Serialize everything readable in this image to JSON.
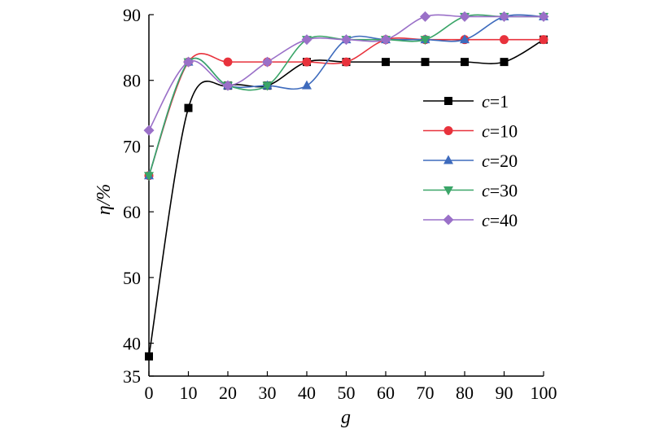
{
  "chart_data": {
    "type": "line",
    "xlabel": "g",
    "ylabel": "η/%",
    "xlim": [
      0,
      100
    ],
    "ylim": [
      35,
      90
    ],
    "xticks": [
      0,
      10,
      20,
      30,
      40,
      50,
      60,
      70,
      80,
      90,
      100
    ],
    "yticks": [
      35,
      40,
      50,
      60,
      70,
      80,
      90
    ],
    "legend_position": "right",
    "x": [
      0,
      10,
      20,
      30,
      40,
      50,
      60,
      70,
      80,
      90,
      100
    ],
    "series": [
      {
        "name": "c=1",
        "name_var": "c",
        "name_val": "=1",
        "color": "#000000",
        "marker": "square",
        "values": [
          38.0,
          75.8,
          79.2,
          79.2,
          82.8,
          82.8,
          82.8,
          82.8,
          82.8,
          82.8,
          86.2
        ]
      },
      {
        "name": "c=10",
        "name_var": "c",
        "name_val": "=10",
        "color": "#e8323c",
        "marker": "circle",
        "values": [
          65.5,
          82.8,
          82.8,
          82.8,
          82.8,
          82.8,
          86.2,
          86.2,
          86.2,
          86.2,
          86.2
        ]
      },
      {
        "name": "c=20",
        "name_var": "c",
        "name_val": "=20",
        "color": "#3e6bbd",
        "marker": "triangle-up",
        "values": [
          65.5,
          82.8,
          79.2,
          79.2,
          79.2,
          86.2,
          86.2,
          86.2,
          86.2,
          89.7,
          89.7
        ]
      },
      {
        "name": "c=30",
        "name_var": "c",
        "name_val": "=30",
        "color": "#3aa568",
        "marker": "triangle-down",
        "values": [
          65.5,
          82.8,
          79.2,
          79.2,
          86.2,
          86.2,
          86.2,
          86.2,
          89.7,
          89.7,
          89.7
        ]
      },
      {
        "name": "c=40",
        "name_var": "c",
        "name_val": "=40",
        "color": "#9a70c8",
        "marker": "diamond",
        "values": [
          72.4,
          82.8,
          79.2,
          82.8,
          86.2,
          86.2,
          86.2,
          89.7,
          89.7,
          89.7,
          89.7
        ]
      }
    ]
  }
}
